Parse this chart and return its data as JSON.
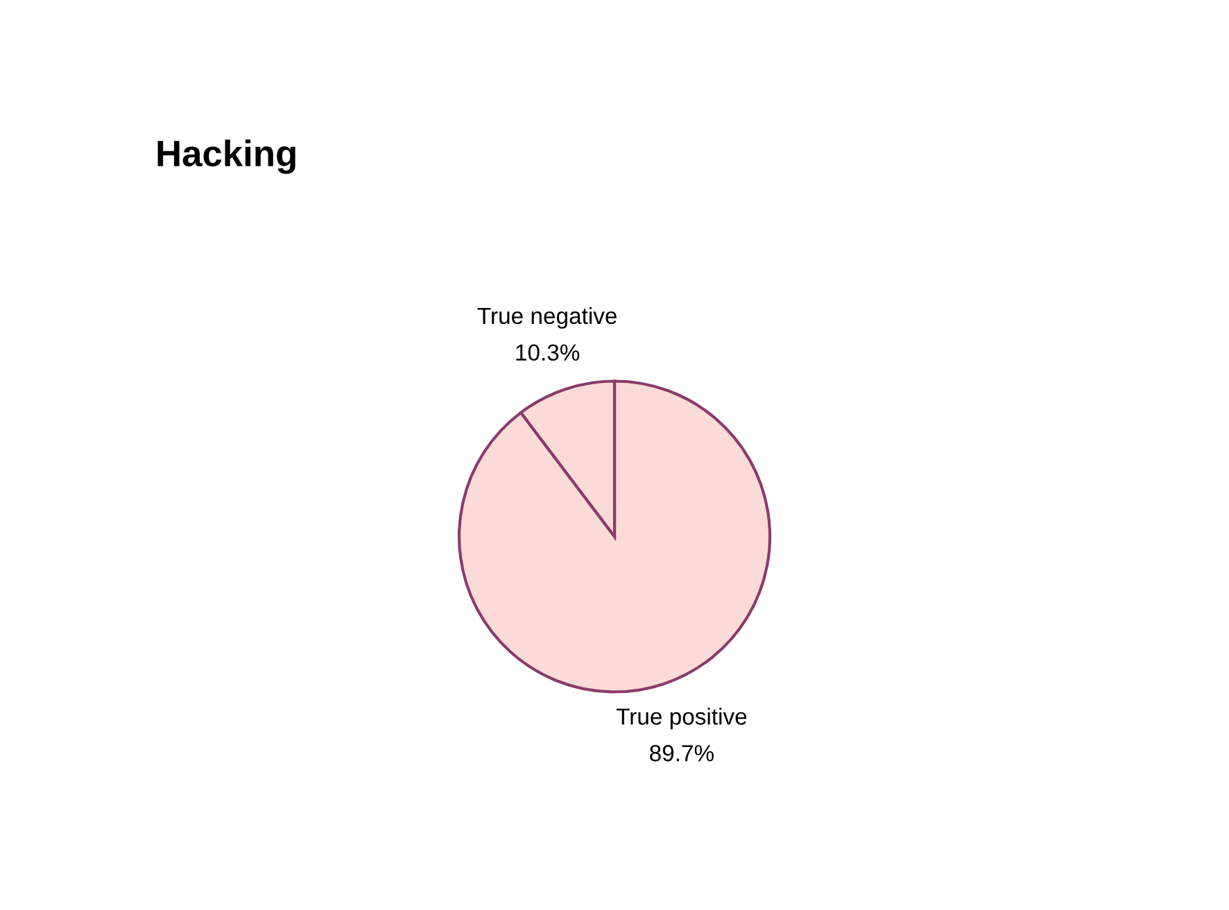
{
  "chart_data": {
    "type": "pie",
    "title": "Hacking",
    "categories": [
      "True positive",
      "True negative"
    ],
    "values": [
      89.7,
      10.3
    ],
    "value_labels": [
      "89.7%",
      "10.3%"
    ],
    "colors": [
      "#fadbd8",
      "#fadbd8"
    ],
    "legend": false
  }
}
